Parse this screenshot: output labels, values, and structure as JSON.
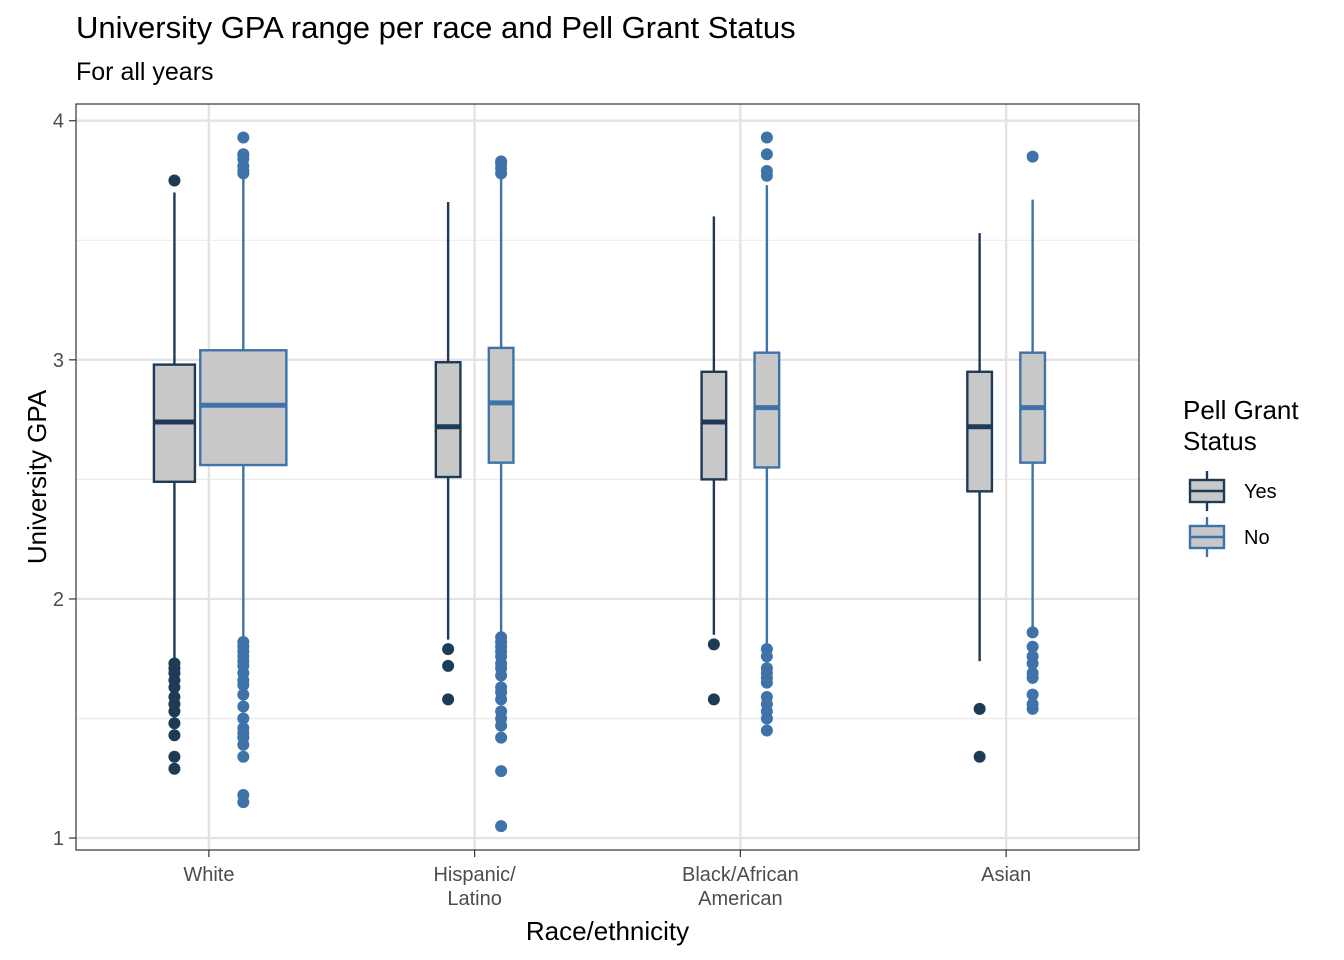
{
  "chart_data": {
    "type": "boxplot",
    "title": "University GPA range per race and Pell Grant Status",
    "subtitle": "For all years",
    "xlabel": "Race/ethnicity",
    "ylabel": "University GPA",
    "ylim": [
      0.95,
      4.07
    ],
    "yticks": [
      1,
      2,
      3,
      4
    ],
    "grid": true,
    "legend": {
      "title_lines": [
        "Pell Grant",
        "Status"
      ],
      "position": "right",
      "entries": [
        "Yes",
        "No"
      ]
    },
    "categories": [
      {
        "label_lines": [
          "White"
        ]
      },
      {
        "label_lines": [
          "Hispanic/",
          "Latino"
        ]
      },
      {
        "label_lines": [
          "Black/African",
          "American"
        ]
      },
      {
        "label_lines": [
          "Asian"
        ]
      }
    ],
    "series": [
      {
        "name": "Yes",
        "color": "#1f3a57",
        "fill": "#c8c8c8",
        "boxes": [
          {
            "whisker_low": 1.75,
            "q1": 2.49,
            "median": 2.74,
            "q3": 2.98,
            "whisker_high": 3.7,
            "outliers": [
              3.75,
              1.73,
              1.71,
              1.69,
              1.66,
              1.63,
              1.59,
              1.56,
              1.53,
              1.48,
              1.43,
              1.34,
              1.29
            ]
          },
          {
            "whisker_low": 1.83,
            "q1": 2.51,
            "median": 2.72,
            "q3": 2.99,
            "whisker_high": 3.66,
            "outliers": [
              1.79,
              1.72,
              1.58
            ]
          },
          {
            "whisker_low": 1.85,
            "q1": 2.5,
            "median": 2.74,
            "q3": 2.95,
            "whisker_high": 3.6,
            "outliers": [
              1.81,
              1.58
            ]
          },
          {
            "whisker_low": 1.74,
            "q1": 2.45,
            "median": 2.72,
            "q3": 2.95,
            "whisker_high": 3.53,
            "outliers": [
              1.54,
              1.34
            ]
          }
        ]
      },
      {
        "name": "No",
        "color": "#3f72a9",
        "fill": "#c8c8c8",
        "boxes": [
          {
            "whisker_low": 1.83,
            "q1": 2.56,
            "median": 2.81,
            "q3": 3.04,
            "whisker_high": 3.76,
            "outliers": [
              3.93,
              3.86,
              3.84,
              3.81,
              3.79,
              3.78,
              1.82,
              1.8,
              1.78,
              1.76,
              1.74,
              1.72,
              1.69,
              1.66,
              1.64,
              1.6,
              1.55,
              1.5,
              1.46,
              1.44,
              1.42,
              1.39,
              1.34,
              1.18,
              1.15
            ]
          },
          {
            "whisker_low": 1.85,
            "q1": 2.57,
            "median": 2.82,
            "q3": 3.05,
            "whisker_high": 3.76,
            "outliers": [
              3.83,
              3.82,
              3.8,
              3.78,
              1.84,
              1.82,
              1.8,
              1.78,
              1.76,
              1.73,
              1.71,
              1.68,
              1.63,
              1.61,
              1.58,
              1.53,
              1.5,
              1.47,
              1.42,
              1.28,
              1.05
            ]
          },
          {
            "whisker_low": 1.81,
            "q1": 2.55,
            "median": 2.8,
            "q3": 3.03,
            "whisker_high": 3.73,
            "outliers": [
              3.93,
              3.86,
              3.79,
              3.77,
              1.79,
              1.76,
              1.71,
              1.69,
              1.67,
              1.65,
              1.59,
              1.56,
              1.53,
              1.5,
              1.45
            ]
          },
          {
            "whisker_low": 1.88,
            "q1": 2.57,
            "median": 2.8,
            "q3": 3.03,
            "whisker_high": 3.67,
            "outliers": [
              3.85,
              1.86,
              1.8,
              1.76,
              1.73,
              1.69,
              1.67,
              1.6,
              1.56,
              1.54
            ]
          }
        ]
      }
    ]
  }
}
